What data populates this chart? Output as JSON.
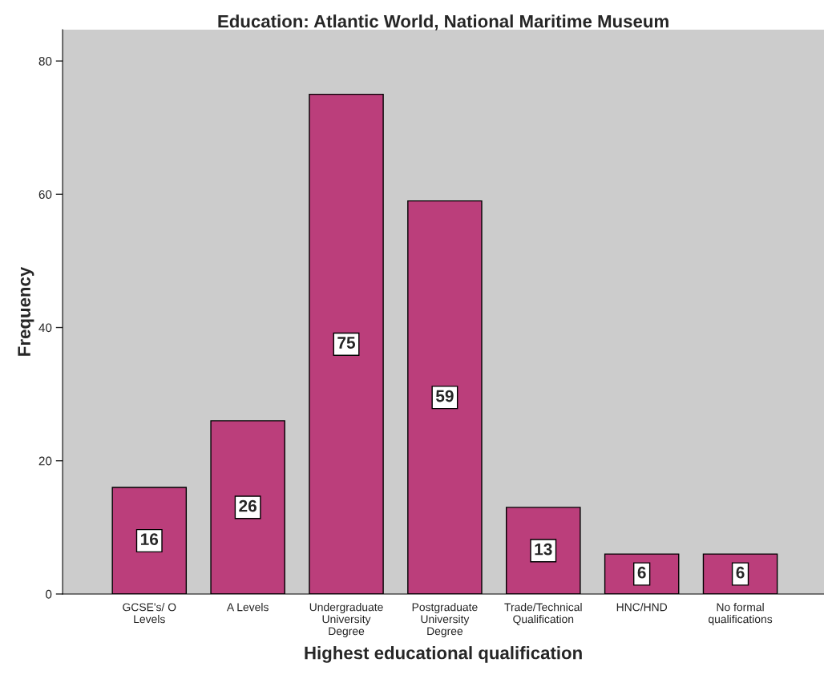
{
  "chart_data": {
    "type": "bar",
    "title": "Education: Atlantic World, National Maritime Museum",
    "xlabel": "Highest educational qualification",
    "ylabel": "Frequency",
    "categories": [
      "GCSE's/ O\nLevels",
      "A Levels",
      "Undergraduate\nUniversity\nDegree",
      "Postgraduate\nUniversity\nDegree",
      "Trade/Technical\nQualification",
      "HNC/HND",
      "No formal\nqualifications"
    ],
    "values": [
      16,
      26,
      75,
      59,
      13,
      6,
      6
    ],
    "color": "#bb3e7b",
    "ylim": [
      0,
      84.7
    ],
    "yticks": [
      0,
      20,
      40,
      60,
      80
    ],
    "data_labels": true
  }
}
